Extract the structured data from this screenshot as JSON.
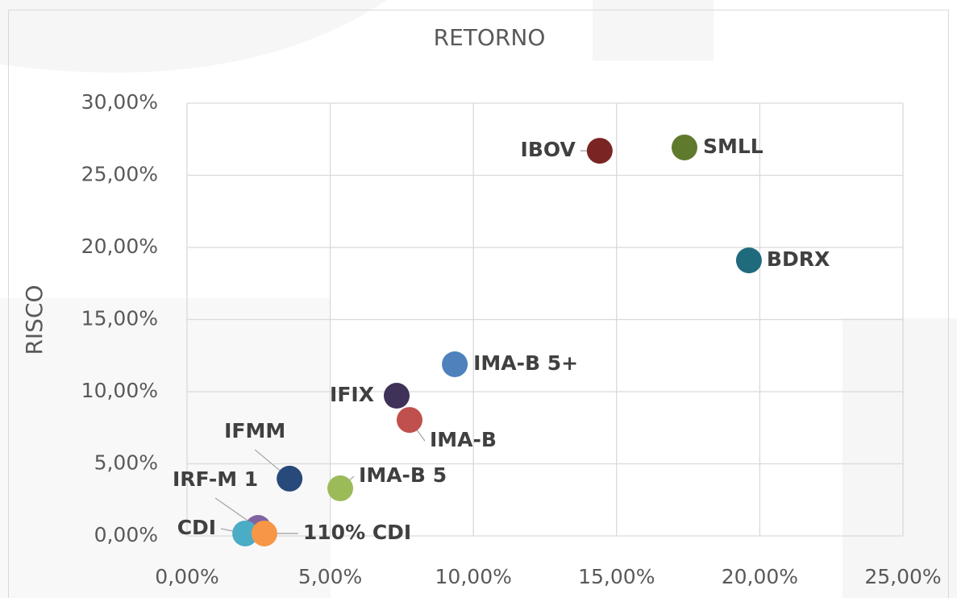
{
  "chart_data": {
    "type": "scatter",
    "title": "RETORNO",
    "y_label": "RISCO",
    "xlim": [
      0,
      25
    ],
    "ylim": [
      0,
      30
    ],
    "xticks": [
      {
        "value": 0,
        "label": "0,00%"
      },
      {
        "value": 5,
        "label": "5,00%"
      },
      {
        "value": 10,
        "label": "10,00%"
      },
      {
        "value": 15,
        "label": "15,00%"
      },
      {
        "value": 20,
        "label": "20,00%"
      },
      {
        "value": 25,
        "label": "25,00%"
      }
    ],
    "yticks": [
      {
        "value": 0,
        "label": "0,00%"
      },
      {
        "value": 5,
        "label": "5,00%"
      },
      {
        "value": 10,
        "label": "10,00%"
      },
      {
        "value": 15,
        "label": "15,00%"
      },
      {
        "value": 20,
        "label": "20,00%"
      },
      {
        "value": 25,
        "label": "25,00%"
      },
      {
        "value": 30,
        "label": "30,00%"
      }
    ],
    "grid": true,
    "points": [
      {
        "label": "IBOV",
        "x": 14.41,
        "y": 26.7,
        "color": "#7b2424"
      },
      {
        "label": "SMLL",
        "x": 17.37,
        "y": 26.93,
        "color": "#5f7a2c"
      },
      {
        "label": "BDRX",
        "x": 19.62,
        "y": 19.1,
        "color": "#206a7e"
      },
      {
        "label": "IMA-B 5+",
        "x": 9.35,
        "y": 11.9,
        "color": "#4f81bd"
      },
      {
        "label": "IFIX",
        "x": 7.32,
        "y": 9.72,
        "color": "#3f3158"
      },
      {
        "label": "IMA-B",
        "x": 7.77,
        "y": 8.04,
        "color": "#c0504d"
      },
      {
        "label": "IFMM",
        "x": 3.58,
        "y": 3.97,
        "color": "#284a7a"
      },
      {
        "label": "IMA-B 5",
        "x": 5.35,
        "y": 3.3,
        "color": "#9bbb59"
      },
      {
        "label": "IRF-M 1",
        "x": 2.48,
        "y": 0.56,
        "color": "#8064a2"
      },
      {
        "label": "CDI",
        "x": 2.03,
        "y": 0.17,
        "color": "#4bacc6"
      },
      {
        "label": "110% CDI",
        "x": 2.7,
        "y": 0.17,
        "color": "#f79646"
      }
    ]
  }
}
